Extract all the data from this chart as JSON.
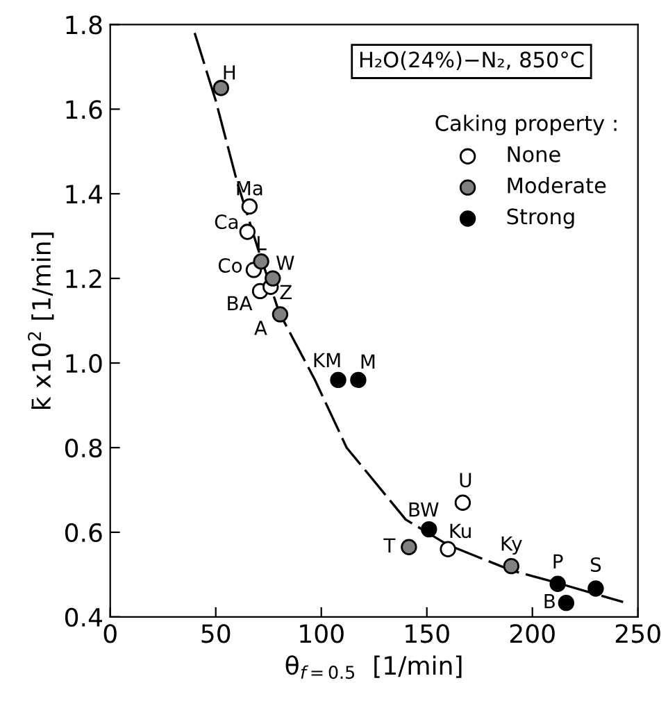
{
  "chart_data": {
    "type": "scatter",
    "xlabel": "θ$_{f=0.5}$  [1/min]",
    "ylabel": "k̄ x10$^{2}$ [1/min]",
    "legend_title": "Caking property :",
    "xlim": [
      0,
      250
    ],
    "ylim": [
      0.4,
      1.8
    ],
    "xticks": [
      0,
      50,
      100,
      150,
      200,
      250
    ],
    "yticks": [
      0.4,
      0.6,
      0.8,
      {
        "value": 1.0,
        "label": "1.0"
      },
      1.2,
      1.4,
      1.6,
      1.8
    ],
    "grid": false,
    "legend": "top right",
    "marker": "circle",
    "series": [
      {
        "name": "None",
        "color": "#ffffff",
        "x": [
          66,
          65,
          68,
          71,
          76,
          167,
          160
        ],
        "values": [
          1.37,
          1.31,
          1.22,
          1.17,
          1.18,
          0.67,
          0.56
        ]
      },
      {
        "name": "Moderate",
        "color": "#808080",
        "x": [
          52.5,
          71.5,
          77,
          80.5,
          141.5,
          190
        ],
        "values": [
          1.65,
          1.24,
          1.2,
          1.115,
          0.565,
          0.52
        ]
      },
      {
        "name": "Strong",
        "color": "#000000",
        "x": [
          108,
          117.5,
          151,
          212,
          230,
          216
        ],
        "values": [
          0.96,
          0.96,
          0.607,
          0.478,
          0.467,
          0.433
        ]
      },
      {
        "type": "line",
        "color": "#000000",
        "line_style": "dashed",
        "marker": "none",
        "x": [
          40,
          50,
          60,
          70,
          80,
          97,
          112,
          140,
          150,
          160,
          190,
          212,
          243
        ],
        "values": [
          1.78,
          1.62,
          1.43,
          1.27,
          1.12,
          0.96,
          0.8,
          0.63,
          0.6,
          0.57,
          0.51,
          0.48,
          0.435
        ]
      }
    ],
    "annotations": [
      "H₂O(24%)−N₂, 850°C",
      {
        "text": "H",
        "x": 52.5,
        "y": 1.65
      },
      {
        "text": "Ma",
        "x": 66,
        "y": 1.37
      },
      {
        "text": "Ca",
        "x": 65,
        "y": 1.31
      },
      {
        "text": "L",
        "x": 71.5,
        "y": 1.24
      },
      {
        "text": "Co",
        "x": 68,
        "y": 1.22
      },
      {
        "text": "W",
        "x": 77,
        "y": 1.2
      },
      {
        "text": "BA",
        "x": 71,
        "y": 1.17
      },
      {
        "text": "Z",
        "x": 76,
        "y": 1.18
      },
      {
        "text": "A",
        "x": 80.5,
        "y": 1.115
      },
      {
        "text": "KM",
        "x": 108,
        "y": 0.96
      },
      {
        "text": "M",
        "x": 117.5,
        "y": 0.96
      },
      {
        "text": "U",
        "x": 167,
        "y": 0.67
      },
      {
        "text": "BW",
        "x": 151,
        "y": 0.607
      },
      {
        "text": "T",
        "x": 141.5,
        "y": 0.565
      },
      {
        "text": "Ku",
        "x": 160,
        "y": 0.56
      },
      {
        "text": "Ky",
        "x": 190,
        "y": 0.52
      },
      {
        "text": "P",
        "x": 212,
        "y": 0.478
      },
      {
        "text": "S",
        "x": 230,
        "y": 0.467
      },
      {
        "text": "B",
        "x": 216,
        "y": 0.433
      }
    ]
  }
}
